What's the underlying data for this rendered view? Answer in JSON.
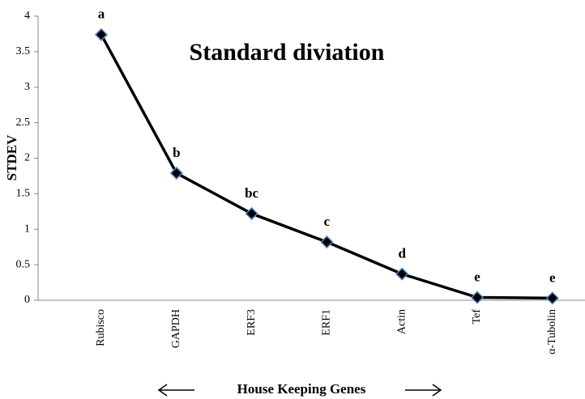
{
  "chart_data": {
    "type": "line",
    "title": "Standard diviation",
    "y_label": "STDEV",
    "x_label": "House Keeping Genes",
    "categories": [
      "Rubisco",
      "GAPDH",
      "ERF3",
      "ERF1",
      "Actin",
      "Tef",
      "α-Tubolin"
    ],
    "values": [
      3.74,
      1.79,
      1.22,
      0.82,
      0.37,
      0.04,
      0.03
    ],
    "annotations": [
      "a",
      "b",
      "bc",
      "c",
      "d",
      "e",
      "e"
    ],
    "color": "#000000",
    "marker_edge_color": "#4f81bd",
    "ylim": [
      0,
      4
    ],
    "yticks": [
      0,
      0.5,
      1,
      1.5,
      2,
      2.5,
      3,
      3.5,
      4
    ],
    "grid": false
  }
}
